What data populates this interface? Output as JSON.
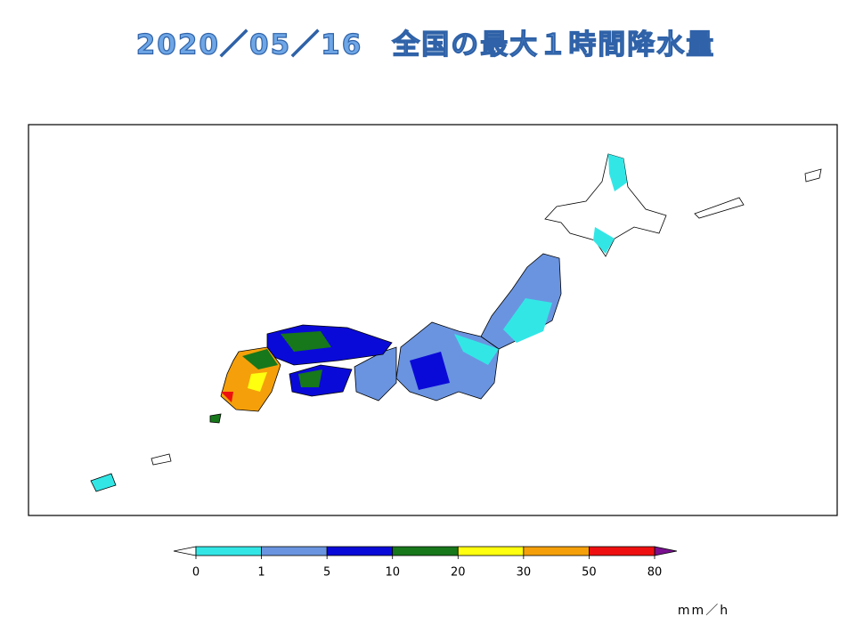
{
  "title": "2020／05／16　全国の最大１時間降水量",
  "legend": {
    "ticks": [
      0,
      1,
      5,
      10,
      20,
      30,
      50,
      80
    ],
    "colors": [
      "#33e6e6",
      "#6a94e0",
      "#0a0ad8",
      "#17771b",
      "#ffff10",
      "#f5a00a",
      "#ee1010"
    ],
    "under_color": "#ffffff",
    "over_color": "#7a1090",
    "unit": "mm／h"
  }
}
